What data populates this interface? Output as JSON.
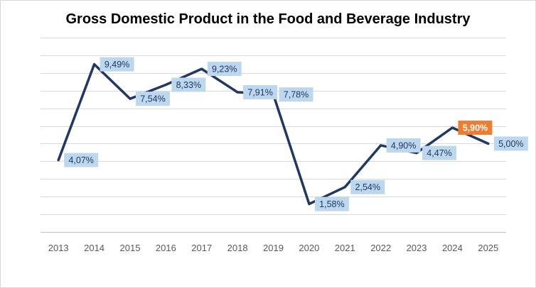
{
  "chart_data": {
    "type": "line",
    "title": "Gross Domestic Product in the Food and Beverage Industry",
    "categories": [
      "2013",
      "2014",
      "2015",
      "2016",
      "2017",
      "2018",
      "2019",
      "2020",
      "2021",
      "2022",
      "2023",
      "2024",
      "2025"
    ],
    "values": [
      4.07,
      9.49,
      7.54,
      8.33,
      9.23,
      7.91,
      7.78,
      1.58,
      2.54,
      4.9,
      4.47,
      5.9,
      5.0
    ],
    "data_labels": [
      "4,07%",
      "9,49%",
      "7,54%",
      "8,33%",
      "9,23%",
      "7,91%",
      "7,78%",
      "1,58%",
      "2,54%",
      "4,90%",
      "4,47%",
      "5,90%",
      "5,00%"
    ],
    "highlight_index": 11,
    "ylim": [
      0,
      11
    ],
    "gridline_step": 1,
    "y_axis_labels_shown": false,
    "grid": true,
    "colors": {
      "line": "#1f3864",
      "label_bg": "#bdd7ee",
      "label_text": "#1f3864",
      "highlight_bg": "#ed7d31",
      "highlight_text": "#ffffff",
      "grid": "#d9d9d9",
      "axis": "#bfbfbf"
    }
  }
}
